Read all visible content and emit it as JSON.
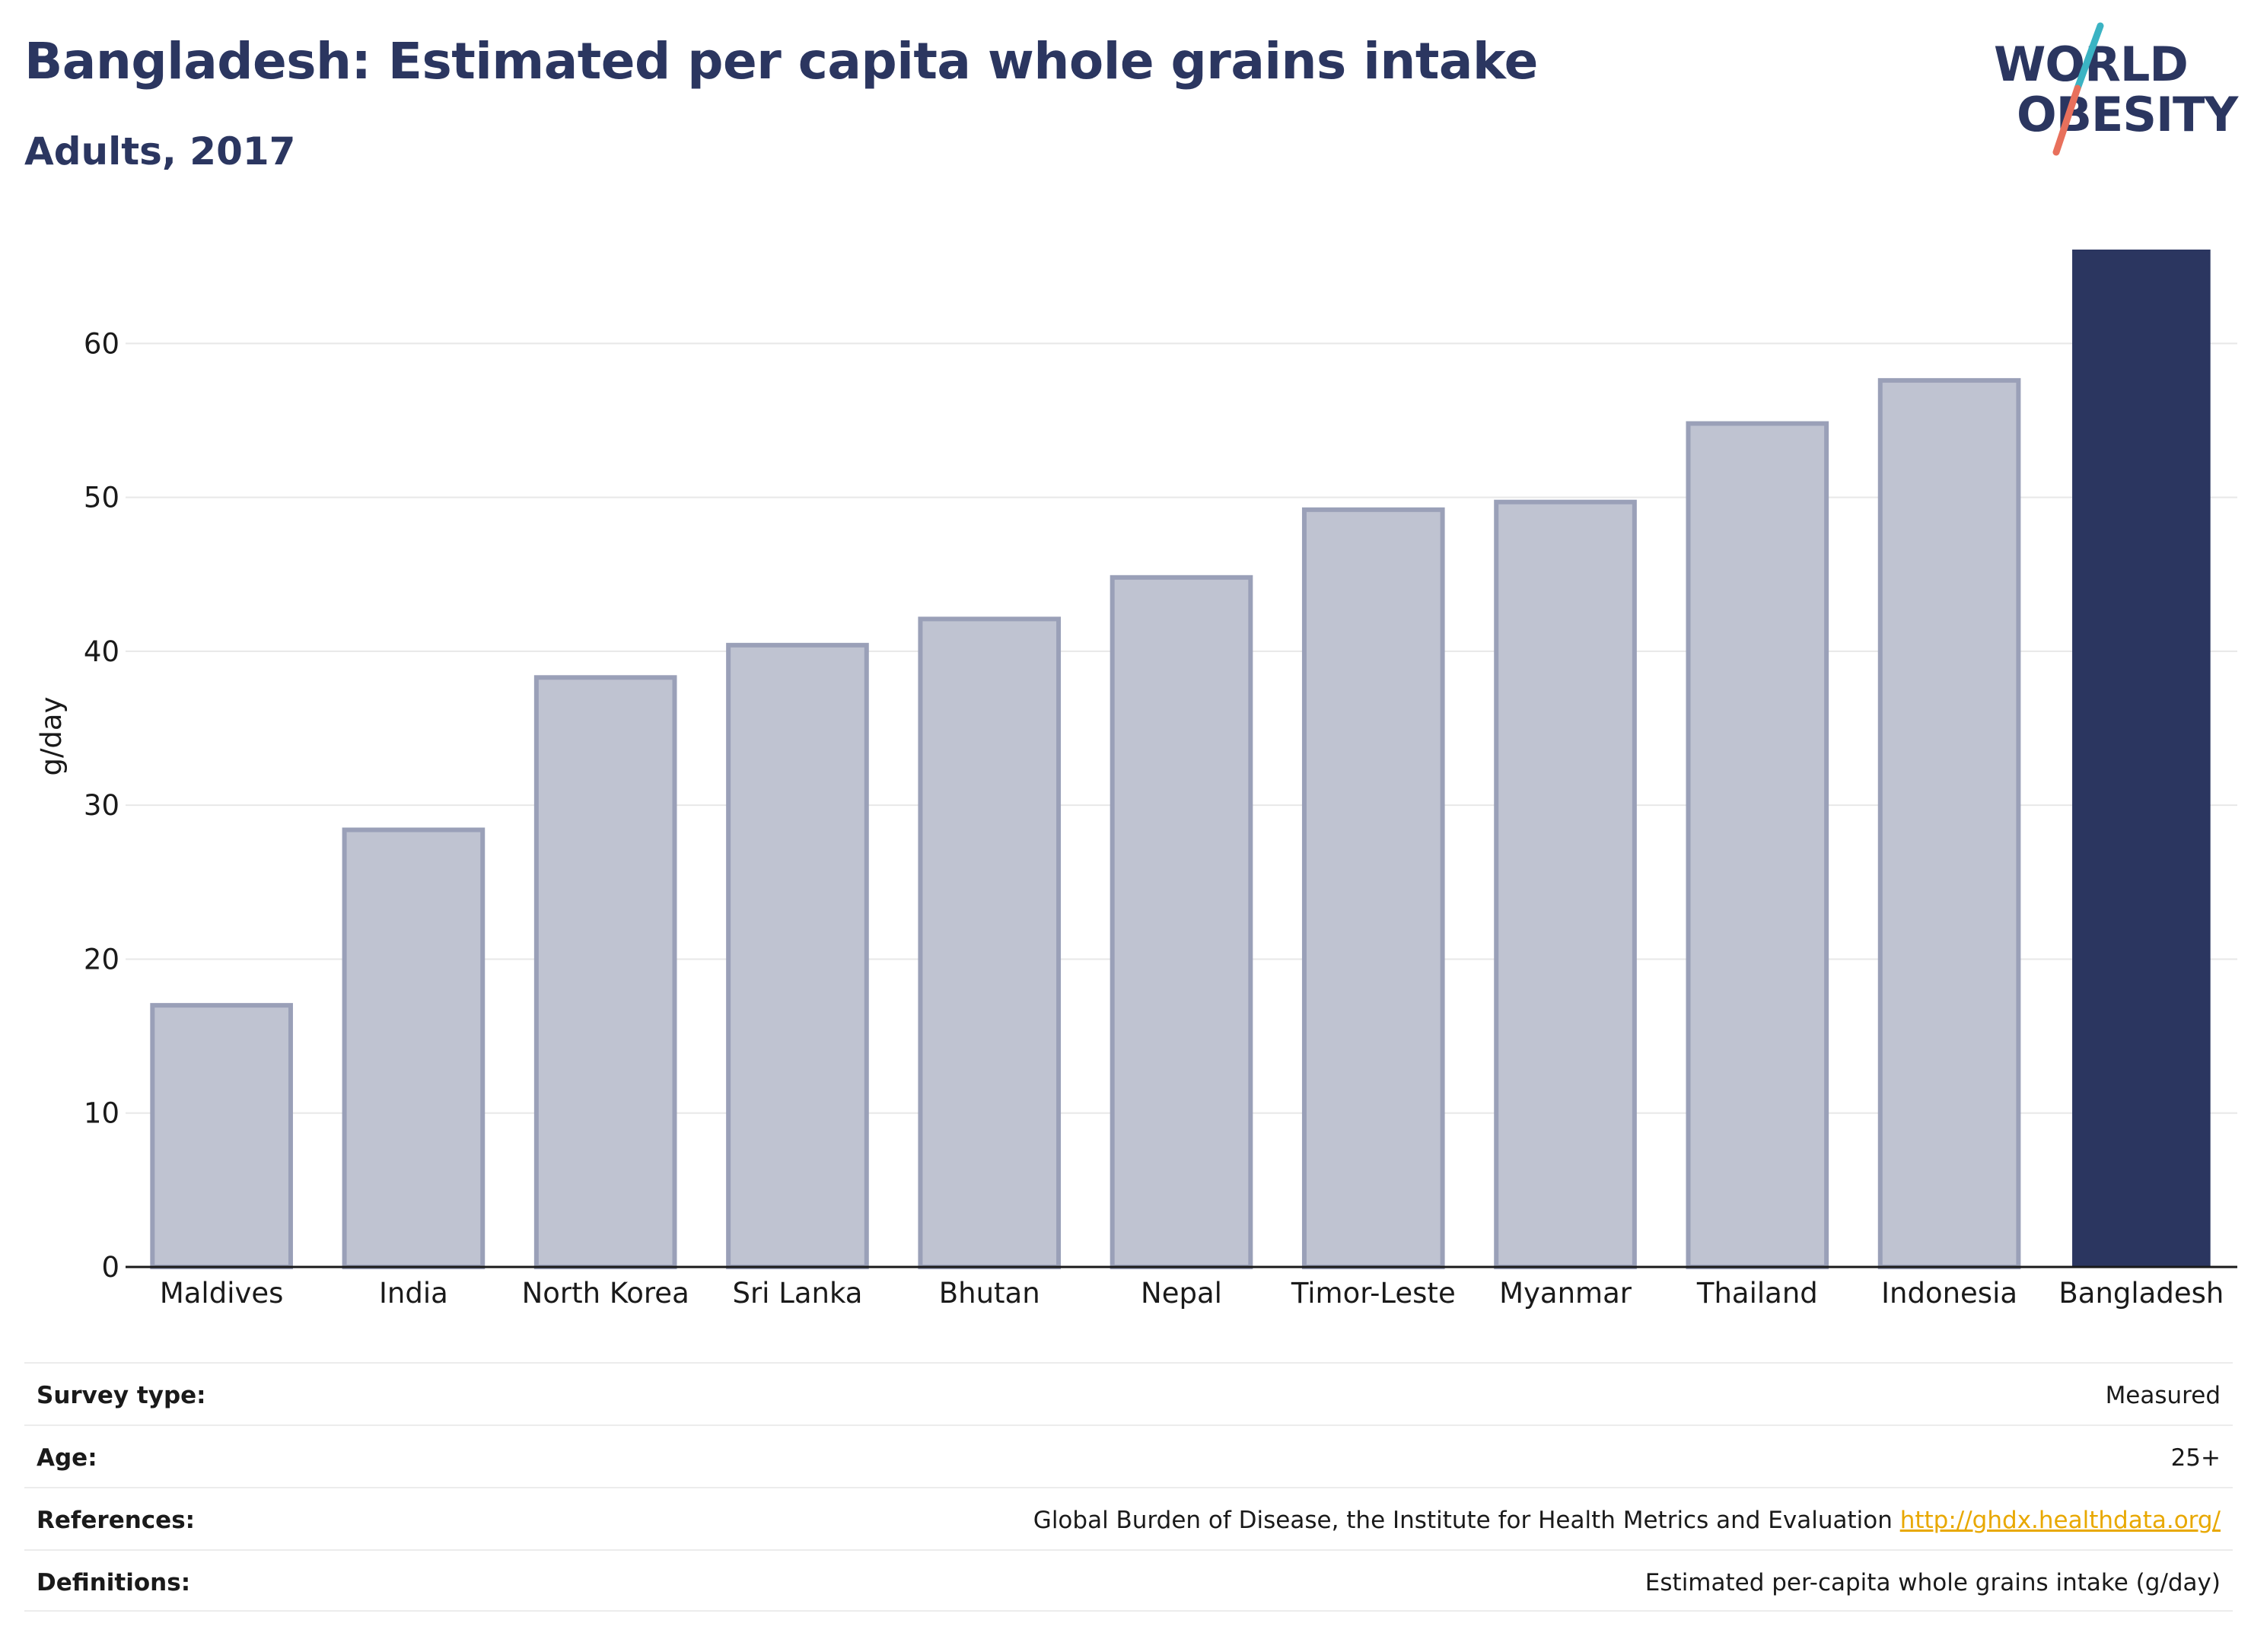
{
  "header": {
    "title": "Bangladesh: Estimated per capita whole grains intake",
    "subtitle": "Adults, 2017"
  },
  "logo": {
    "line1": "WORLD",
    "line2": "OBESITY",
    "colors": {
      "text": "#2b3660",
      "slash_teal": "#3bb3c3",
      "slash_coral": "#e8705c"
    }
  },
  "chart_data": {
    "type": "bar",
    "title": "",
    "xlabel": "",
    "ylabel": "g/day",
    "ylim": [
      0,
      66
    ],
    "yticks": [
      0,
      10,
      20,
      30,
      40,
      50,
      60
    ],
    "grid": true,
    "categories": [
      "Maldives",
      "India",
      "North Korea",
      "Sri Lanka",
      "Bhutan",
      "Nepal",
      "Timor-Leste",
      "Myanmar",
      "Thailand",
      "Indonesia",
      "Bangladesh"
    ],
    "values": [
      17.0,
      28.4,
      38.3,
      40.4,
      42.1,
      44.8,
      49.2,
      49.7,
      54.8,
      57.6,
      66.1
    ],
    "highlight": "Bangladesh",
    "colors": {
      "bar": "#bfc3d1",
      "bar_border": "#9aa0b8",
      "highlight": "#2b3660",
      "grid": "#e8e8e8",
      "axis": "#1a1a1a"
    }
  },
  "info": [
    {
      "key": "Survey type:",
      "value": "Measured"
    },
    {
      "key": "Age:",
      "value": "25+"
    },
    {
      "key": "References:",
      "value": "Global Burden of Disease, the Institute for Health Metrics and Evaluation",
      "link": "http://ghdx.healthdata.org/"
    },
    {
      "key": "Definitions:",
      "value": "Estimated per-capita whole grains intake (g/day)"
    }
  ]
}
